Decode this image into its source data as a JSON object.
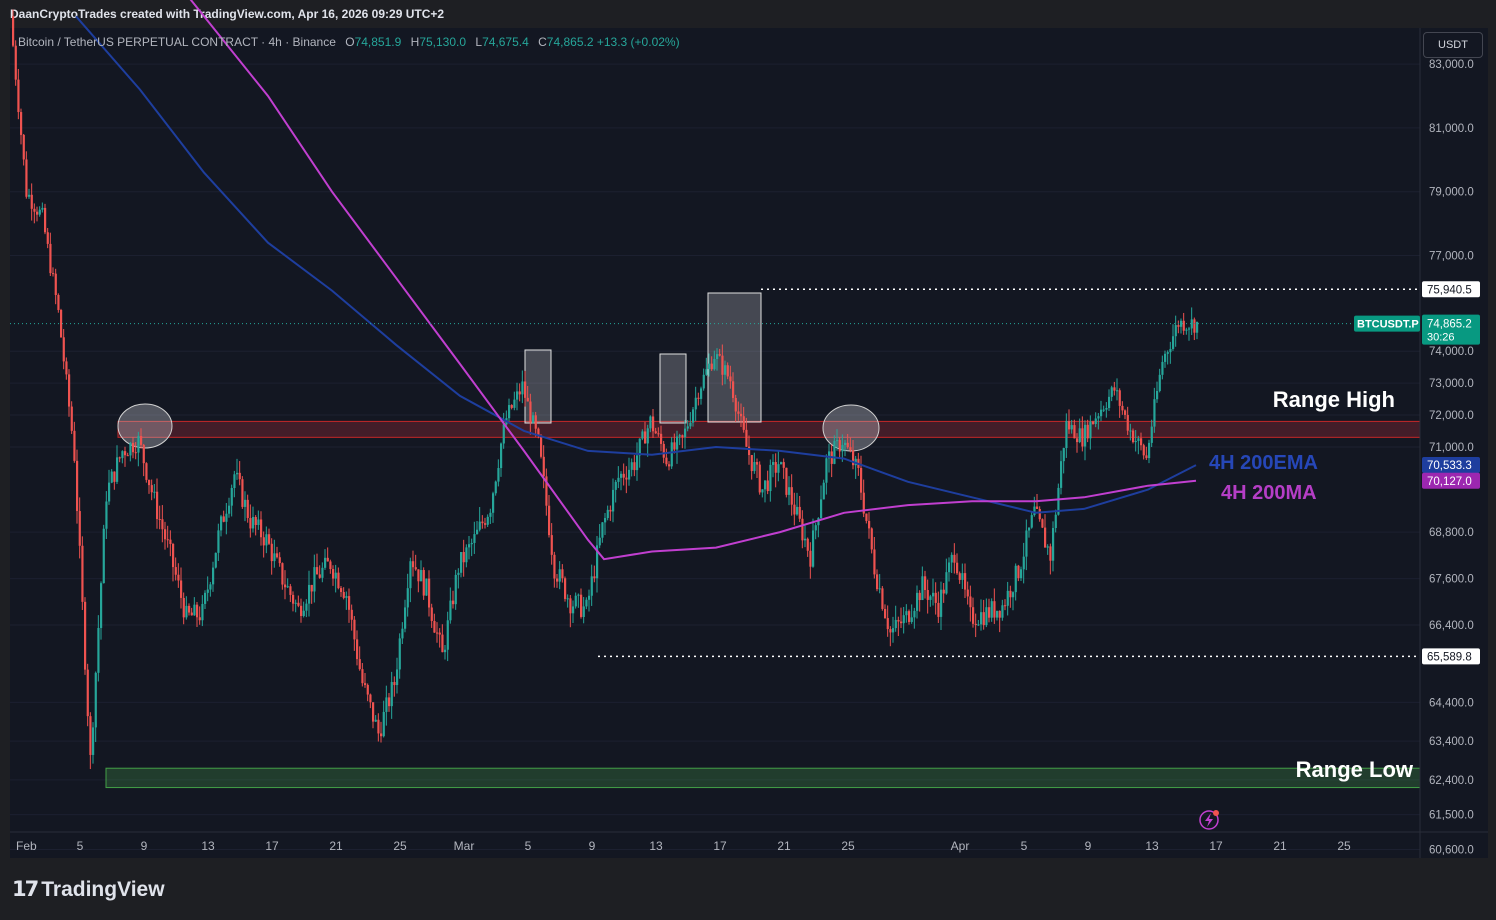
{
  "header": {
    "credit": "DaanCryptoTrades created with TradingView.com, Apr 16, 2026 09:29 UTC+2"
  },
  "legend": {
    "symbol": "Bitcoin / TetherUS PERPETUAL CONTRACT · 4h · Binance",
    "o_label": "O",
    "o_value": "74,851.9",
    "h_label": "H",
    "h_value": "75,130.0",
    "l_label": "L",
    "l_value": "74,675.4",
    "c_label": "C",
    "c_value": "74,865.2",
    "change": "+13.3 (+0.02%)"
  },
  "currency": "USDT",
  "brand": {
    "name": "TradingView",
    "logo_icon": "tradingview-logo-icon"
  },
  "colors": {
    "up": "#26a69a",
    "down": "#ef5350",
    "ema": "#1e3e9e",
    "ma": "#c13fd0",
    "bg": "#131722"
  },
  "chart_data": {
    "type": "candlestick",
    "symbol": "BTCUSDT.P",
    "timeframe": "4h",
    "y_axis_ticks": [
      "83,000.0",
      "81,000.0",
      "79,000.0",
      "77,000.0",
      "74,000.0",
      "73,000.0",
      "72,000.0",
      "71,000.0",
      "68,800.0",
      "67,600.0",
      "66,400.0",
      "64,400.0",
      "63,400.0",
      "62,400.0",
      "61,500.0",
      "60,600.0"
    ],
    "x_axis_ticks": [
      "Feb",
      "5",
      "9",
      "13",
      "17",
      "21",
      "25",
      "Mar",
      "5",
      "9",
      "13",
      "17",
      "21",
      "25",
      "Apr",
      "5",
      "9",
      "13",
      "17",
      "21",
      "25"
    ],
    "price_path": [
      [
        "Feb 1",
        84500
      ],
      [
        "Feb 2",
        79000
      ],
      [
        "Feb 3",
        78200
      ],
      [
        "Feb 4",
        75200
      ],
      [
        "Feb 5",
        70800
      ],
      [
        "Feb 6",
        62900
      ],
      [
        "Feb 7",
        69800
      ],
      [
        "Feb 8",
        70900
      ],
      [
        "Feb 9",
        71200
      ],
      [
        "Feb 10",
        69600
      ],
      [
        "Feb 11",
        68200
      ],
      [
        "Feb 12",
        66600
      ],
      [
        "Feb 13",
        66700
      ],
      [
        "Feb 14",
        68700
      ],
      [
        "Feb 15",
        70300
      ],
      [
        "Feb 16",
        69100
      ],
      [
        "Feb 17",
        68600
      ],
      [
        "Feb 18",
        67600
      ],
      [
        "Feb 19",
        66800
      ],
      [
        "Feb 20",
        67600
      ],
      [
        "Feb 21",
        68000
      ],
      [
        "Feb 22",
        67200
      ],
      [
        "Feb 23",
        64900
      ],
      [
        "Feb 24",
        63600
      ],
      [
        "Feb 25",
        64900
      ],
      [
        "Feb 26",
        68200
      ],
      [
        "Feb 27",
        67300
      ],
      [
        "Feb 28",
        65600
      ],
      [
        "Mar 1",
        67900
      ],
      [
        "Mar 2",
        68600
      ],
      [
        "Mar 3",
        69500
      ],
      [
        "Mar 4",
        71900
      ],
      [
        "Mar 5",
        72900
      ],
      [
        "Mar 6",
        71100
      ],
      [
        "Mar 7",
        67900
      ],
      [
        "Mar 8",
        67000
      ],
      [
        "Mar 9",
        66800
      ],
      [
        "Mar 10",
        68900
      ],
      [
        "Mar 11",
        70200
      ],
      [
        "Mar 12",
        70600
      ],
      [
        "Mar 13",
        71800
      ],
      [
        "Mar 14",
        70700
      ],
      [
        "Mar 15",
        71200
      ],
      [
        "Mar 16",
        72800
      ],
      [
        "Mar 17",
        73900
      ],
      [
        "Mar 18",
        73100
      ],
      [
        "Mar 19",
        71000
      ],
      [
        "Mar 20",
        69900
      ],
      [
        "Mar 21",
        70600
      ],
      [
        "Mar 22",
        69400
      ],
      [
        "Mar 23",
        68200
      ],
      [
        "Mar 24",
        70600
      ],
      [
        "Mar 25",
        71200
      ],
      [
        "Mar 26",
        70300
      ],
      [
        "Mar 27",
        67900
      ],
      [
        "Mar 28",
        66200
      ],
      [
        "Mar 29",
        66600
      ],
      [
        "Mar 30",
        67400
      ],
      [
        "Mar 31",
        66900
      ],
      [
        "Apr 1",
        68300
      ],
      [
        "Apr 2",
        66600
      ],
      [
        "Apr 3",
        66700
      ],
      [
        "Apr 4",
        66900
      ],
      [
        "Apr 5",
        67800
      ],
      [
        "Apr 6",
        69300
      ],
      [
        "Apr 7",
        68200
      ],
      [
        "Apr 8",
        71700
      ],
      [
        "Apr 9",
        71300
      ],
      [
        "Apr 10",
        72100
      ],
      [
        "Apr 11",
        72800
      ],
      [
        "Apr 12",
        71500
      ],
      [
        "Apr 13",
        70700
      ],
      [
        "Apr 14",
        73700
      ],
      [
        "Apr 15",
        74900
      ],
      [
        "Apr 16",
        74865
      ]
    ],
    "ema_200": [
      [
        "Feb 5",
        84500
      ],
      [
        "Feb 9",
        82200
      ],
      [
        "Feb 13",
        79600
      ],
      [
        "Feb 17",
        77400
      ],
      [
        "Feb 21",
        75900
      ],
      [
        "Feb 25",
        74200
      ],
      [
        "Mar 1",
        72600
      ],
      [
        "Mar 5",
        71500
      ],
      [
        "Mar 9",
        70900
      ],
      [
        "Mar 13",
        70800
      ],
      [
        "Mar 17",
        71000
      ],
      [
        "Mar 21",
        70900
      ],
      [
        "Mar 25",
        70700
      ],
      [
        "Mar 29",
        70100
      ],
      [
        "Apr 2",
        69700
      ],
      [
        "Apr 6",
        69300
      ],
      [
        "Apr 9",
        69400
      ],
      [
        "Apr 13",
        69900
      ],
      [
        "Apr 16",
        70533
      ]
    ],
    "ma_200": [
      [
        "Feb 9",
        87000
      ],
      [
        "Feb 17",
        82000
      ],
      [
        "Feb 21",
        79000
      ],
      [
        "Feb 25",
        76300
      ],
      [
        "Mar 1",
        73600
      ],
      [
        "Mar 5",
        70900
      ],
      [
        "Mar 9",
        68600
      ],
      [
        "Mar 10",
        68100
      ],
      [
        "Mar 13",
        68300
      ],
      [
        "Mar 17",
        68400
      ],
      [
        "Mar 21",
        68800
      ],
      [
        "Mar 25",
        69300
      ],
      [
        "Mar 29",
        69500
      ],
      [
        "Apr 2",
        69600
      ],
      [
        "Apr 6",
        69600
      ],
      [
        "Apr 9",
        69700
      ],
      [
        "Apr 13",
        70000
      ],
      [
        "Apr 16",
        70127
      ]
    ],
    "series": [
      {
        "name": "4H 200EMA",
        "last": "70,533.3"
      },
      {
        "name": "4H 200MA",
        "last": "70,127.0"
      }
    ],
    "zones": [
      {
        "label": "Range High",
        "low": 71300,
        "high": 71800
      },
      {
        "label": "Range Low",
        "low": 62200,
        "high": 62700
      }
    ],
    "levels": [
      {
        "value": "75,940.5"
      },
      {
        "value": "65,589.8"
      }
    ],
    "current_price": {
      "label": "BTCUSDT.P",
      "value": "74,865.2",
      "countdown": "30:26"
    }
  }
}
